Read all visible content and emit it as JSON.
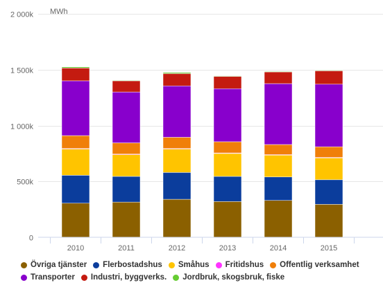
{
  "chart_data": {
    "type": "bar",
    "stacked": true,
    "unit_label": "MWh",
    "categories": [
      "2010",
      "2011",
      "2012",
      "2013",
      "2014",
      "2015"
    ],
    "ylim": [
      0,
      2000000
    ],
    "yticks": [
      {
        "value": 0,
        "label": "0"
      },
      {
        "value": 500000,
        "label": "500k"
      },
      {
        "value": 1000000,
        "label": "1 000k"
      },
      {
        "value": 1500000,
        "label": "1 500k"
      },
      {
        "value": 2000000,
        "label": "2 000k"
      }
    ],
    "grid": true,
    "legend_position": "bottom",
    "series": [
      {
        "name": "Övriga tjänster",
        "color": "#8b6000",
        "values": [
          305000,
          315000,
          340000,
          320000,
          330000,
          295000
        ]
      },
      {
        "name": "Flerbostadshus",
        "color": "#0b3d9c",
        "values": [
          250000,
          230000,
          240000,
          225000,
          210000,
          220000
        ]
      },
      {
        "name": "Småhus",
        "color": "#ffc400",
        "values": [
          235000,
          195000,
          210000,
          205000,
          195000,
          195000
        ]
      },
      {
        "name": "Fritidshus",
        "color": "#ff33ff",
        "values": [
          5000,
          5000,
          5000,
          5000,
          5000,
          5000
        ]
      },
      {
        "name": "Offentlig verksamhet",
        "color": "#f07f09",
        "values": [
          115000,
          100000,
          100000,
          100000,
          90000,
          95000
        ]
      },
      {
        "name": "Transporter",
        "color": "#8800cc",
        "values": [
          490000,
          455000,
          460000,
          475000,
          545000,
          560000
        ]
      },
      {
        "name": "Industri, byggverks.",
        "color": "#c41b10",
        "values": [
          115000,
          100000,
          110000,
          110000,
          105000,
          120000
        ]
      },
      {
        "name": "Jordbruk, skogsbruk, fiske",
        "color": "#66cc33",
        "values": [
          10000,
          5000,
          10000,
          5000,
          5000,
          5000
        ]
      }
    ]
  },
  "legend": {
    "rows": [
      [
        0,
        1,
        2,
        3,
        4
      ],
      [
        5,
        6,
        7
      ]
    ]
  }
}
